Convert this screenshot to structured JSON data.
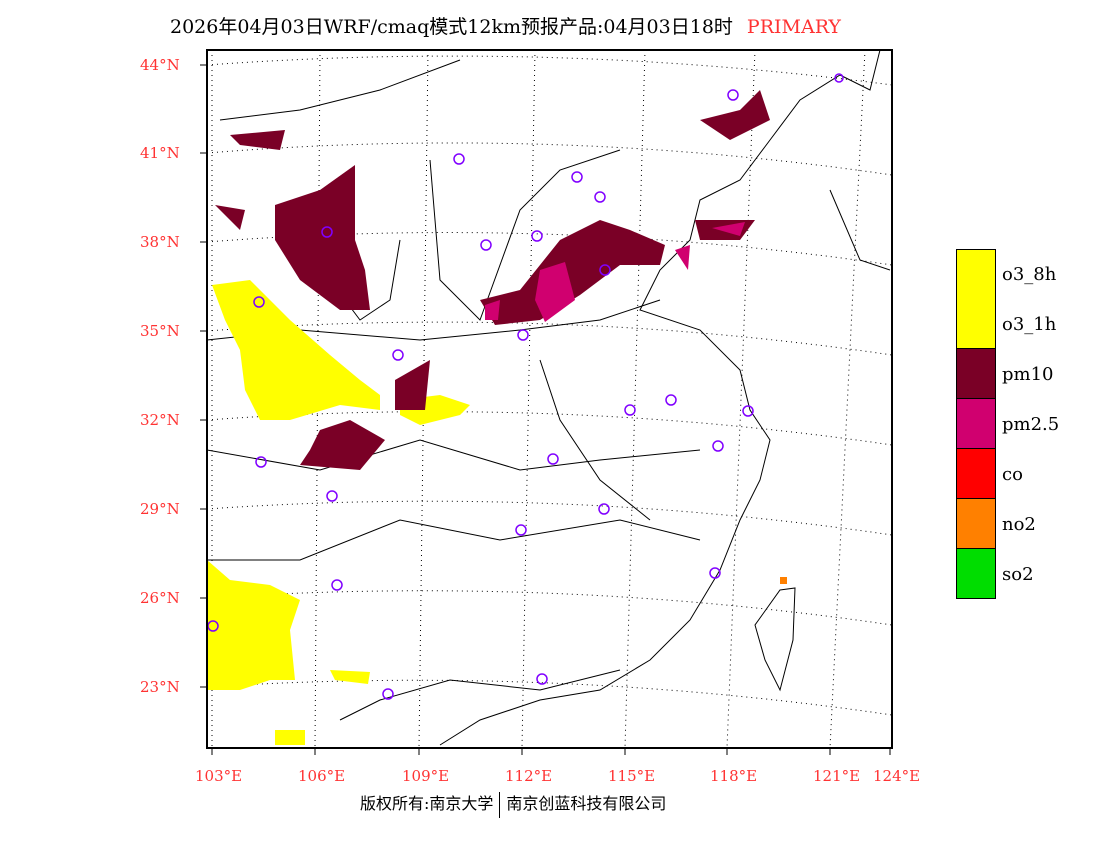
{
  "title": {
    "text": "2026年04月03日WRF/cmaq模式12km预报产品:04月03日18时",
    "product": "PRIMARY"
  },
  "lat_labels": [
    "44°N",
    "41°N",
    "38°N",
    "35°N",
    "32°N",
    "29°N",
    "26°N",
    "23°N"
  ],
  "lon_labels": [
    "103°E",
    "106°E",
    "109°E",
    "112°E",
    "115°E",
    "118°E",
    "121°E",
    "124°E"
  ],
  "legend": [
    {
      "label": "o3_8h",
      "color": "#ffff00"
    },
    {
      "label": "o3_1h",
      "color": "#ffff00"
    },
    {
      "label": "pm10",
      "color": "#7a0026"
    },
    {
      "label": "pm2.5",
      "color": "#d0006f"
    },
    {
      "label": "co",
      "color": "#ff0000"
    },
    {
      "label": "no2",
      "color": "#ff8000"
    },
    {
      "label": "so2",
      "color": "#00dd00"
    }
  ],
  "footer": {
    "left": "版权所有:南京大学",
    "right": "南京创蓝科技有限公司"
  }
}
